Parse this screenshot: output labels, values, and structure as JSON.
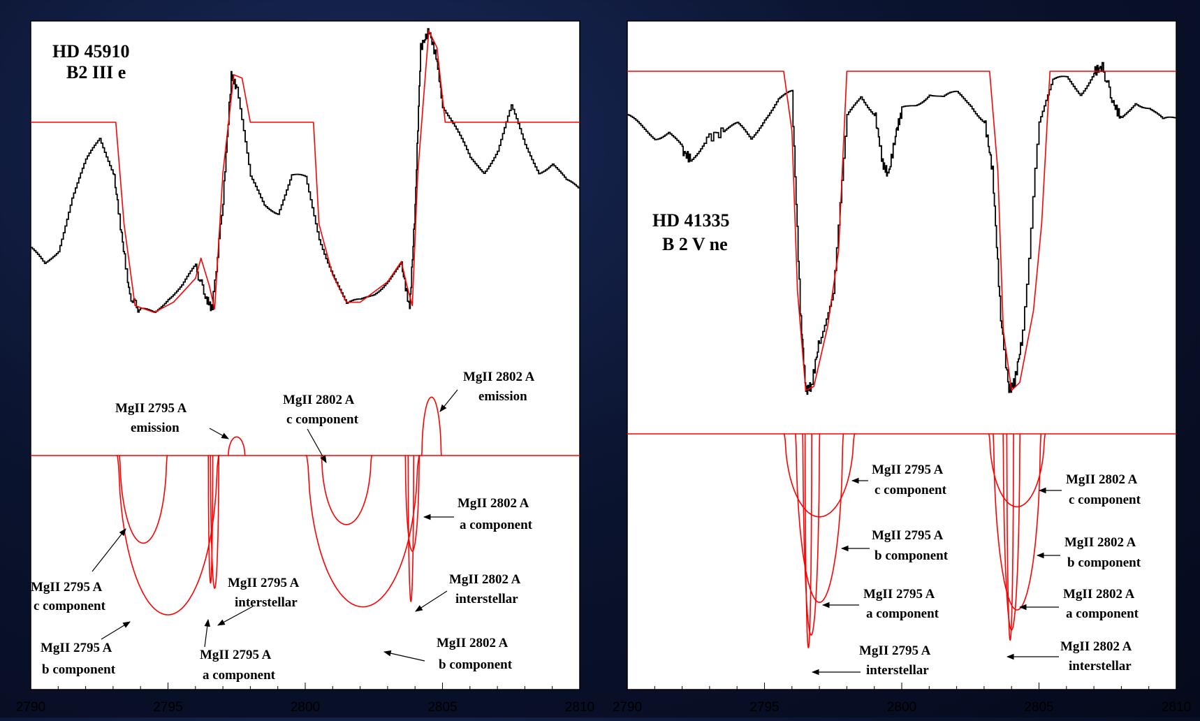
{
  "panels": [
    {
      "id": "left",
      "title_lines": [
        "HD 45910",
        "B2 III e"
      ],
      "x_ticks": [
        "2790",
        "2795",
        "2800",
        "2805",
        "2810"
      ],
      "annotations": [
        {
          "lines": [
            "MgII 2795 A",
            "emission"
          ]
        },
        {
          "lines": [
            "MgII 2802 A",
            "c component"
          ]
        },
        {
          "lines": [
            "MgII 2802 A",
            "emission"
          ]
        },
        {
          "lines": [
            "MgII 2802 A",
            "a component"
          ]
        },
        {
          "lines": [
            "MgII 2795 A",
            "c component"
          ]
        },
        {
          "lines": [
            "MgII 2795 A",
            "interstellar"
          ]
        },
        {
          "lines": [
            "MgII 2802 A",
            "interstellar"
          ]
        },
        {
          "lines": [
            "MgII 2795 A",
            "b component"
          ]
        },
        {
          "lines": [
            "MgII 2795 A",
            "a component"
          ]
        },
        {
          "lines": [
            "MgII 2802 A",
            "b component"
          ]
        }
      ]
    },
    {
      "id": "right",
      "title_lines": [
        "HD 41335",
        "B 2 V ne"
      ],
      "x_ticks": [
        "2790",
        "2795",
        "2800",
        "2805",
        "2810"
      ],
      "annotations": [
        {
          "lines": [
            "MgII 2795 A",
            "c component"
          ]
        },
        {
          "lines": [
            "MgII 2802 A",
            "c component"
          ]
        },
        {
          "lines": [
            "MgII 2795 A",
            "b component"
          ]
        },
        {
          "lines": [
            "MgII 2802 A",
            "b component"
          ]
        },
        {
          "lines": [
            "MgII 2795 A",
            "a component"
          ]
        },
        {
          "lines": [
            "MgII 2802 A",
            "a component"
          ]
        },
        {
          "lines": [
            "MgII 2795 A",
            "interstellar"
          ]
        },
        {
          "lines": [
            "MgII 2802 A",
            "interstellar"
          ]
        }
      ]
    }
  ],
  "colors": {
    "observed": "#000000",
    "model": "#ff0000",
    "frame": "#000000",
    "background": "#ffffff"
  },
  "chart_data": [
    {
      "type": "line",
      "star": "HD 45910",
      "xlim": [
        2790,
        2810
      ],
      "x_ticks": [
        2790,
        2795,
        2800,
        2805,
        2810
      ],
      "series": [
        {
          "kind": "observed",
          "x": [
            2790,
            2790.5,
            2791,
            2791.5,
            2792,
            2792.5,
            2793,
            2793.3,
            2793.6,
            2794,
            2794.5,
            2795,
            2795.5,
            2796,
            2796.4,
            2796.6,
            2797,
            2797.3,
            2797.5,
            2798,
            2798.5,
            2799,
            2799.5,
            2800,
            2800.5,
            2801,
            2801.5,
            2802,
            2802.5,
            2803,
            2803.5,
            2803.8,
            2804,
            2804.2,
            2804.5,
            2804.8,
            2805,
            2805.5,
            2806,
            2806.5,
            2807,
            2807.5,
            2808,
            2808.5,
            2809,
            2809.5,
            2810
          ],
          "y": [
            0.62,
            0.58,
            0.63,
            0.78,
            0.88,
            0.95,
            0.86,
            0.67,
            0.49,
            0.44,
            0.44,
            0.49,
            0.52,
            0.57,
            0.48,
            0.45,
            0.77,
            1.14,
            1.1,
            0.83,
            0.76,
            0.74,
            0.84,
            0.83,
            0.66,
            0.56,
            0.46,
            0.47,
            0.5,
            0.54,
            0.58,
            0.45,
            0.75,
            1.22,
            1.27,
            1.18,
            1.05,
            0.97,
            0.89,
            0.86,
            0.92,
            1.04,
            0.93,
            0.86,
            0.88,
            0.82,
            0.8
          ]
        },
        {
          "kind": "model",
          "x": [
            2790,
            2793.1,
            2793.4,
            2793.8,
            2794.5,
            2795.2,
            2796,
            2796.2,
            2796.5,
            2796.7,
            2797.0,
            2797.4,
            2797.7,
            2798.0,
            2800.3,
            2800.5,
            2801,
            2801.5,
            2802,
            2803,
            2803.5,
            2803.7,
            2803.9,
            2804.1,
            2804.5,
            2804.8,
            2805.1,
            2810
          ],
          "y": [
            1.0,
            1.0,
            0.7,
            0.46,
            0.44,
            0.47,
            0.54,
            0.6,
            0.52,
            0.45,
            0.85,
            1.14,
            1.13,
            1.0,
            1.0,
            0.7,
            0.55,
            0.47,
            0.47,
            0.53,
            0.59,
            0.52,
            0.46,
            0.85,
            1.27,
            1.22,
            1.0,
            1.0
          ]
        }
      ],
      "components": [
        {
          "name": "MgII 2795 A c component",
          "center": 2794.1,
          "width": 0.85,
          "depth": 0.33
        },
        {
          "name": "MgII 2795 A b component",
          "center": 2795.0,
          "width": 1.8,
          "depth": 0.6
        },
        {
          "name": "MgII 2795 A a component",
          "center": 2796.7,
          "width": 0.15,
          "depth": 0.5
        },
        {
          "name": "MgII 2795 A interstellar",
          "center": 2796.55,
          "width": 0.08,
          "depth": 0.48
        },
        {
          "name": "MgII 2795 A emission",
          "center": 2797.5,
          "width": 0.3,
          "depth": -0.07
        },
        {
          "name": "MgII 2802 A c component",
          "center": 2801.5,
          "width": 0.9,
          "depth": 0.26
        },
        {
          "name": "MgII 2802 A b component",
          "center": 2802.1,
          "width": 2.0,
          "depth": 0.57
        },
        {
          "name": "MgII 2802 A a component",
          "center": 2803.9,
          "width": 0.25,
          "depth": 0.36
        },
        {
          "name": "MgII 2802 A interstellar",
          "center": 2803.85,
          "width": 0.1,
          "depth": 0.55
        },
        {
          "name": "MgII 2802 A emission",
          "center": 2804.6,
          "width": 0.35,
          "depth": -0.22
        }
      ]
    },
    {
      "type": "line",
      "star": "HD 41335",
      "xlim": [
        2790,
        2810
      ],
      "x_ticks": [
        2790,
        2795,
        2800,
        2805,
        2810
      ],
      "series": [
        {
          "kind": "observed",
          "x": [
            2790,
            2790.5,
            2791,
            2791.5,
            2792,
            2792.3,
            2792.8,
            2793.5,
            2794,
            2794.5,
            2795,
            2795.5,
            2796,
            2796.3,
            2796.5,
            2796.7,
            2797,
            2797.5,
            2798,
            2798.5,
            2799,
            2799.3,
            2799.5,
            2799.8,
            2800,
            2800.5,
            2801,
            2801.5,
            2802,
            2802.5,
            2803,
            2803.3,
            2803.6,
            2803.9,
            2804.1,
            2804.4,
            2805,
            2805.5,
            2806,
            2806.5,
            2807,
            2807.3,
            2807.7,
            2808,
            2808.5,
            2809,
            2809.5,
            2810
          ],
          "y": [
            0.88,
            0.86,
            0.84,
            0.85,
            0.8,
            0.78,
            0.83,
            0.85,
            0.86,
            0.83,
            0.89,
            0.93,
            0.94,
            0.4,
            0.2,
            0.21,
            0.33,
            0.44,
            0.88,
            0.94,
            0.9,
            0.77,
            0.74,
            0.85,
            0.9,
            0.92,
            0.95,
            0.93,
            0.94,
            0.92,
            0.88,
            0.75,
            0.38,
            0.2,
            0.22,
            0.34,
            0.88,
            0.97,
            0.98,
            0.95,
            1.0,
            1.01,
            0.92,
            0.88,
            0.93,
            0.91,
            0.87,
            0.88
          ]
        },
        {
          "kind": "model",
          "x": [
            2790,
            2795.7,
            2796.0,
            2796.2,
            2796.5,
            2796.8,
            2797.3,
            2797.7,
            2798.0,
            2803.2,
            2803.5,
            2803.7,
            2804.0,
            2804.3,
            2804.8,
            2805.1,
            2805.4,
            2810
          ],
          "y": [
            1.0,
            1.0,
            0.85,
            0.45,
            0.2,
            0.21,
            0.36,
            0.55,
            1.0,
            1.0,
            0.75,
            0.35,
            0.2,
            0.22,
            0.4,
            0.62,
            1.0,
            1.0
          ]
        }
      ],
      "components": [
        {
          "name": "MgII 2795 A c component",
          "center": 2797.0,
          "width": 1.25,
          "depth": 0.33
        },
        {
          "name": "MgII 2795 A b component",
          "center": 2797.0,
          "width": 0.85,
          "depth": 0.67
        },
        {
          "name": "MgII 2795 A a component",
          "center": 2796.7,
          "width": 0.3,
          "depth": 0.8
        },
        {
          "name": "MgII 2795 A interstellar",
          "center": 2796.6,
          "width": 0.12,
          "depth": 0.85
        },
        {
          "name": "MgII 2802 A c component",
          "center": 2804.2,
          "width": 1.0,
          "depth": 0.29
        },
        {
          "name": "MgII 2802 A b component",
          "center": 2804.2,
          "width": 0.85,
          "depth": 0.7
        },
        {
          "name": "MgII 2802 A a component",
          "center": 2804.0,
          "width": 0.3,
          "depth": 0.78
        },
        {
          "name": "MgII 2802 A interstellar",
          "center": 2803.95,
          "width": 0.12,
          "depth": 0.82
        }
      ]
    }
  ]
}
